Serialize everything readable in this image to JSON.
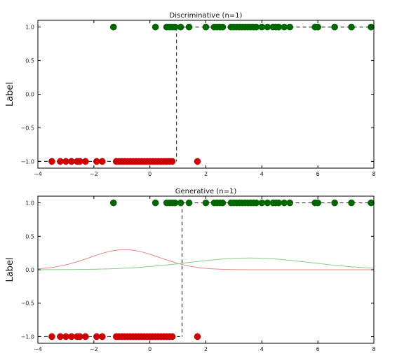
{
  "chart_data": [
    {
      "type": "scatter",
      "title": "Discriminative (n=1)",
      "xlabel": "",
      "ylabel": "Label",
      "xlim": [
        -4,
        8
      ],
      "ylim": [
        -1.1,
        1.1
      ],
      "xticks": [
        -4,
        -2,
        0,
        2,
        4,
        6,
        8
      ],
      "xtick_labels": [
        "−4",
        "−2",
        "0",
        "2",
        "4",
        "6",
        "8"
      ],
      "yticks": [
        1.0,
        0.5,
        0.0,
        -0.5,
        -1.0
      ],
      "ytick_labels": [
        "1.0",
        "0.5",
        "0.0",
        "−0.5",
        "−1.0"
      ],
      "grid": false,
      "series": [
        {
          "color": "#cc0000",
          "y": -1,
          "x": [
            -3.5,
            -3.2,
            -3.0,
            -2.8,
            -2.6,
            -2.5,
            -2.3,
            -1.9,
            -1.7,
            -1.2,
            -1.1,
            -1.0,
            -0.9,
            -0.8,
            -0.7,
            -0.6,
            -0.5,
            -0.4,
            -0.3,
            -0.2,
            -0.1,
            0.0,
            0.1,
            0.2,
            0.3,
            0.4,
            0.5,
            0.6,
            0.7,
            0.8,
            1.7
          ]
        },
        {
          "color": "#006600",
          "y": 1,
          "x": [
            -1.3,
            0.2,
            0.6,
            0.7,
            0.8,
            0.9,
            1.1,
            1.4,
            2.0,
            2.3,
            2.4,
            2.5,
            2.6,
            2.9,
            3.0,
            3.1,
            3.2,
            3.3,
            3.4,
            3.5,
            3.6,
            3.7,
            3.8,
            4.0,
            4.2,
            4.4,
            4.5,
            4.6,
            4.8,
            5.0,
            5.9,
            6.0,
            6.6,
            7.2,
            7.9
          ]
        }
      ],
      "boundary_x": 0.95,
      "boundary_color": "#333333",
      "boundary_style": "dashed",
      "step_line": "dashed from boundary to right edge at y=1"
    },
    {
      "type": "scatter",
      "title": "Generative (n=1)",
      "xlabel": "",
      "ylabel": "Label",
      "xlim": [
        -4,
        8
      ],
      "ylim": [
        -1.1,
        1.1
      ],
      "xticks": [
        -4,
        -2,
        0,
        2,
        4,
        6,
        8
      ],
      "xtick_labels": [
        "−4",
        "−2",
        "0",
        "2",
        "4",
        "6",
        "8"
      ],
      "yticks": [
        1.0,
        0.5,
        0.0,
        -0.5,
        -1.0
      ],
      "ytick_labels": [
        "1.0",
        "0.5",
        "0.0",
        "−0.5",
        "−1.0"
      ],
      "grid": false,
      "series": [
        {
          "color": "#cc0000",
          "y": -1,
          "x": [
            -3.5,
            -3.2,
            -3.0,
            -2.8,
            -2.6,
            -2.5,
            -2.3,
            -1.9,
            -1.7,
            -1.2,
            -1.1,
            -1.0,
            -0.9,
            -0.8,
            -0.7,
            -0.6,
            -0.5,
            -0.4,
            -0.3,
            -0.2,
            -0.1,
            0.0,
            0.1,
            0.2,
            0.3,
            0.4,
            0.5,
            0.6,
            0.7,
            0.8,
            1.7
          ]
        },
        {
          "color": "#006600",
          "y": 1,
          "x": [
            -1.3,
            0.2,
            0.6,
            0.7,
            0.8,
            0.9,
            1.1,
            1.4,
            2.0,
            2.3,
            2.4,
            2.5,
            2.6,
            2.9,
            3.0,
            3.1,
            3.2,
            3.3,
            3.4,
            3.5,
            3.6,
            3.7,
            3.8,
            4.0,
            4.2,
            4.4,
            4.5,
            4.6,
            4.8,
            5.0,
            5.9,
            6.0,
            6.6,
            7.2,
            7.9
          ]
        }
      ],
      "density_curves": [
        {
          "color": "#e88888",
          "mean": -0.9,
          "std": 1.25,
          "peak": 0.3
        },
        {
          "color": "#88cc88",
          "mean": 3.55,
          "std": 2.2,
          "peak": 0.175
        }
      ],
      "boundary_x": 1.15,
      "boundary_color": "#333333",
      "boundary_style": "dashed",
      "step_line": "dashed from boundary to right edge at y=1"
    }
  ]
}
